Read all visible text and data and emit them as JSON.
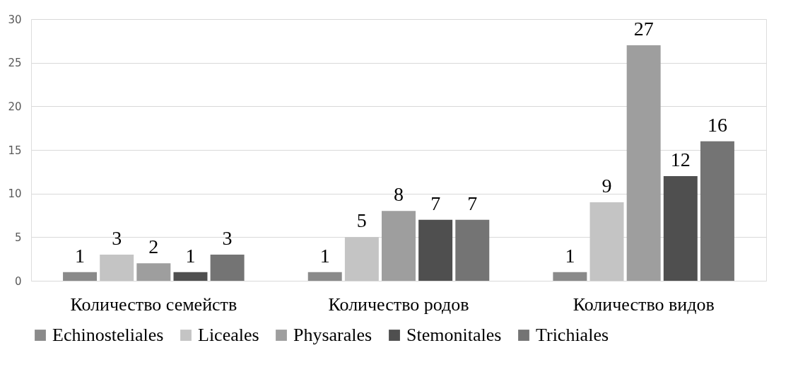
{
  "chart_data": {
    "type": "bar",
    "categories": [
      "Количество семейств",
      "Количество родов",
      "Количество видов"
    ],
    "series": [
      {
        "name": "Echinosteliales",
        "color": "#8a8a8a",
        "values": [
          1,
          1,
          1
        ]
      },
      {
        "name": "Liceales",
        "color": "#c4c4c4",
        "values": [
          3,
          5,
          9
        ]
      },
      {
        "name": "Physarales",
        "color": "#9e9e9e",
        "values": [
          2,
          8,
          27
        ]
      },
      {
        "name": "Stemonitales",
        "color": "#4f4f4f",
        "values": [
          1,
          7,
          12
        ]
      },
      {
        "name": "Trichiales",
        "color": "#747474",
        "values": [
          3,
          7,
          16
        ]
      }
    ],
    "ylim": [
      0,
      30
    ],
    "yticks": [
      0,
      5,
      10,
      15,
      20,
      25,
      30
    ],
    "grid": "y",
    "legend": "bottom",
    "data_labels": true
  }
}
